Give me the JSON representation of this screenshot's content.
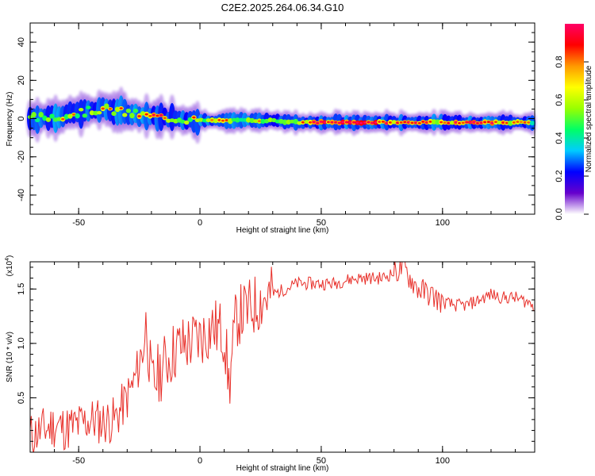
{
  "title": "C2E2.2025.264.06.34.G10",
  "chart_data": [
    {
      "type": "heatmap",
      "panel": "spectrogram",
      "xlabel": "Height of straight line (km)",
      "ylabel": "Frequency (Hz)",
      "xlim": [
        -70,
        138
      ],
      "ylim": [
        -50,
        50
      ],
      "x_ticks": [
        "-50",
        "0",
        "50",
        "100"
      ],
      "y_ticks": [
        "40",
        "20",
        "0",
        "-20",
        "-40"
      ],
      "colorbar": {
        "label": "Normalized spectral amplitude",
        "range": [
          0,
          1
        ],
        "ticks": [
          "0.0",
          "0.2",
          "0.4",
          "0.6",
          "0.8"
        ],
        "colormap": [
          "#ffffff",
          "#6600cc",
          "#0000ff",
          "#00ccff",
          "#00ff66",
          "#99ff00",
          "#ffff00",
          "#ff9900",
          "#ff0000",
          "#ff0066"
        ]
      },
      "ridge": {
        "x": [
          -70,
          -60,
          -50,
          -40,
          -30,
          -20,
          -10,
          0,
          10,
          20,
          30,
          40,
          50,
          60,
          70,
          80,
          90,
          100,
          110,
          120,
          130,
          138
        ],
        "center_hz": [
          0,
          1,
          3,
          5,
          3,
          1,
          0,
          -1,
          -1,
          -1,
          -1,
          -2,
          -2,
          -2,
          -2,
          -2,
          -2,
          -2,
          -2,
          -2,
          -2,
          -2
        ],
        "amplitude": [
          0.45,
          0.5,
          0.55,
          0.6,
          0.55,
          0.7,
          0.6,
          0.55,
          0.55,
          0.5,
          0.55,
          0.6,
          0.75,
          0.85,
          0.8,
          0.7,
          0.75,
          0.6,
          0.75,
          0.7,
          0.55,
          0.5
        ]
      }
    },
    {
      "type": "line",
      "panel": "snr",
      "xlabel": "Height of straight line (km)",
      "ylabel": "SNR (10 * v/v)",
      "scale_label": "(x10",
      "scale_exp": "4",
      "xlim": [
        -70,
        138
      ],
      "ylim": [
        0,
        1.75
      ],
      "x_ticks": [
        "-50",
        "0",
        "50",
        "100"
      ],
      "y_ticks": [
        "1.5",
        "1.0",
        "0.5"
      ],
      "series": [
        {
          "name": "SNR",
          "color": "#e8302a",
          "x": [
            -70,
            -65,
            -60,
            -55,
            -50,
            -45,
            -40,
            -35,
            -30,
            -27,
            -24,
            -22,
            -20,
            -15,
            -10,
            -5,
            0,
            5,
            10,
            12,
            15,
            20,
            25,
            30,
            35,
            40,
            45,
            50,
            55,
            60,
            65,
            70,
            75,
            80,
            84,
            86,
            90,
            95,
            100,
            105,
            110,
            115,
            120,
            125,
            130,
            135,
            138
          ],
          "y": [
            0.15,
            0.2,
            0.25,
            0.22,
            0.25,
            0.3,
            0.28,
            0.3,
            0.5,
            0.65,
            0.9,
            1.2,
            0.6,
            0.8,
            0.95,
            1.0,
            1.05,
            1.15,
            1.1,
            0.6,
            1.25,
            1.3,
            1.4,
            1.45,
            1.5,
            1.55,
            1.55,
            1.55,
            1.55,
            1.58,
            1.6,
            1.6,
            1.6,
            1.65,
            1.7,
            1.62,
            1.5,
            1.45,
            1.38,
            1.35,
            1.35,
            1.4,
            1.45,
            1.42,
            1.42,
            1.38,
            1.35
          ]
        }
      ]
    }
  ]
}
